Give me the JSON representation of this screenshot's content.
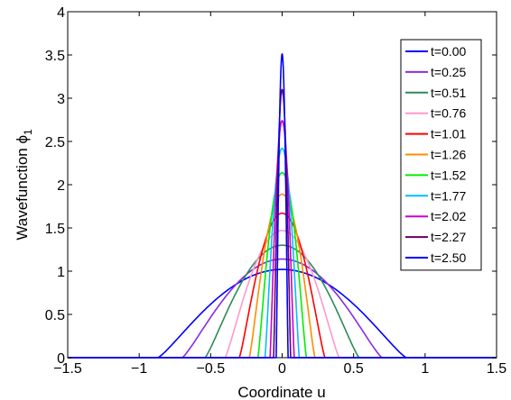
{
  "chart_data": {
    "type": "line",
    "xlabel": "Coordinate u",
    "ylabel": "Wavefunction ϕ",
    "ylabel_subscript": "1",
    "xlim": [
      -1.5,
      1.5
    ],
    "ylim": [
      0,
      4
    ],
    "xticks": [
      "−1.5",
      "−1",
      "−0.5",
      "0",
      "0.5",
      "1",
      "1.5"
    ],
    "xtick_values": [
      -1.5,
      -1,
      -0.5,
      0,
      0.5,
      1,
      1.5
    ],
    "yticks": [
      "0",
      "0.5",
      "1",
      "1.5",
      "2",
      "2.5",
      "3",
      "3.5",
      "4"
    ],
    "ytick_values": [
      0,
      0.5,
      1,
      1.5,
      2,
      2.5,
      3,
      3.5,
      4
    ],
    "grid": false,
    "legend_position": "top-right",
    "series": [
      {
        "name": "t=0.00",
        "color": "#0000ff",
        "peak": 1.02,
        "support": 0.87
      },
      {
        "name": "t=0.25",
        "color": "#8a2be2",
        "peak": 1.14,
        "support": 0.7
      },
      {
        "name": "t=0.51",
        "color": "#2e8b57",
        "peak": 1.3,
        "support": 0.54
      },
      {
        "name": "t=0.76",
        "color": "#ff99cc",
        "peak": 1.47,
        "support": 0.4
      },
      {
        "name": "t=1.01",
        "color": "#ff0000",
        "peak": 1.67,
        "support": 0.3
      },
      {
        "name": "t=1.26",
        "color": "#ff8c00",
        "peak": 1.89,
        "support": 0.23
      },
      {
        "name": "t=1.52",
        "color": "#00ee00",
        "peak": 2.14,
        "support": 0.17
      },
      {
        "name": "t=1.77",
        "color": "#00bfff",
        "peak": 2.42,
        "support": 0.12
      },
      {
        "name": "t=2.02",
        "color": "#cc00cc",
        "peak": 2.74,
        "support": 0.085
      },
      {
        "name": "t=2.27",
        "color": "#660066",
        "peak": 3.1,
        "support": 0.06
      },
      {
        "name": "t=2.50",
        "color": "#0000ff",
        "peak": 3.51,
        "support": 0.042
      }
    ]
  }
}
